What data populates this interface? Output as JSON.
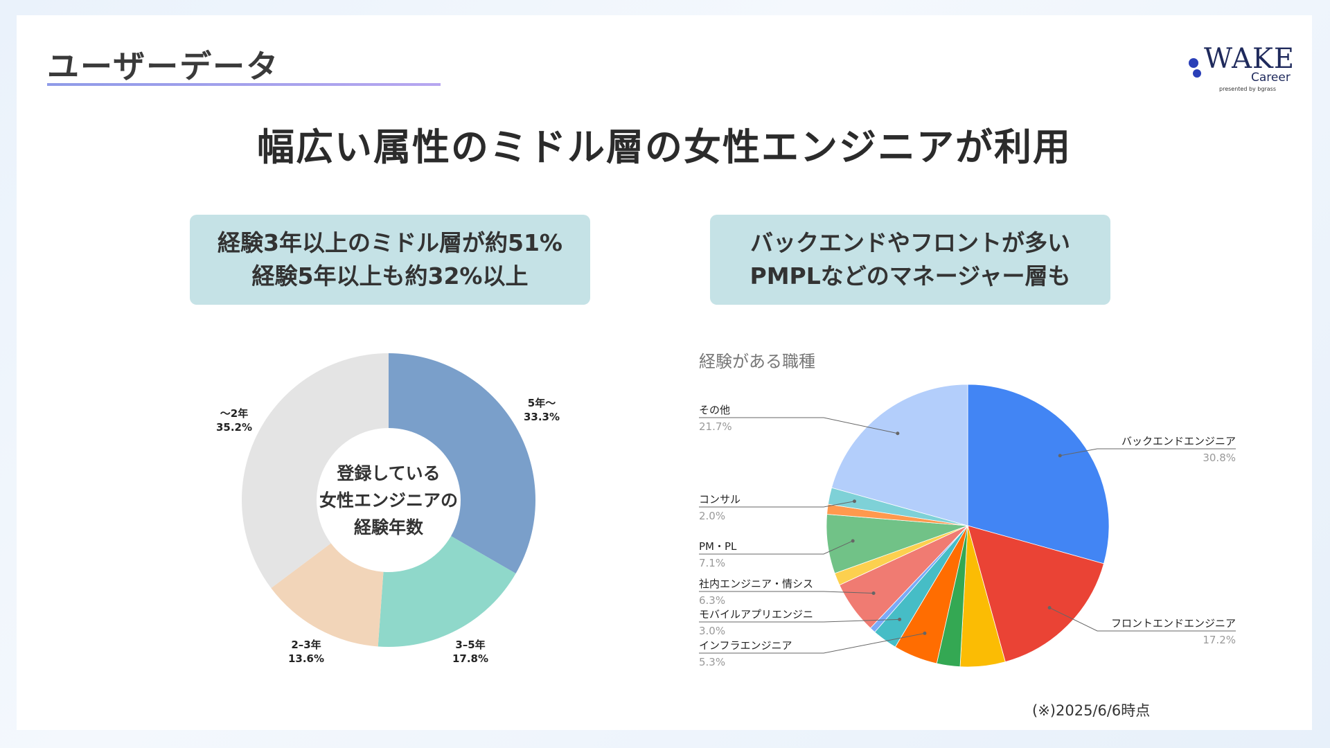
{
  "slide": {
    "section_title": "ユーザーデータ",
    "headline": "幅広い属性のミドル層の女性エンジニアが利用",
    "logo": {
      "wordmark": "WAKE",
      "sub": "Career",
      "presented": "presented by bgrass"
    },
    "callouts": [
      {
        "lines": [
          "経験3年以上のミドル層が約51%",
          "経験5年以上も約32%以上"
        ]
      },
      {
        "lines": [
          "バックエンドやフロントが多い",
          "PMPLなどのマネージャー層も"
        ]
      }
    ],
    "footnote": "(※)2025/6/6時点"
  },
  "chart_data": [
    {
      "type": "pie",
      "donut": true,
      "center_label": [
        "登録している",
        "女性エンジニアの",
        "経験年数"
      ],
      "slices": [
        {
          "label": "5年〜",
          "value": 33.3,
          "display": "33.3%",
          "color": "#7a9fca"
        },
        {
          "label": "3–5年",
          "value": 17.8,
          "display": "17.8%",
          "color": "#8fd8ca"
        },
        {
          "label": "2–3年",
          "value": 13.6,
          "display": "13.6%",
          "color": "#f2d5b9"
        },
        {
          "label": "〜2年",
          "value": 35.2,
          "display": "35.2%",
          "color": "#e4e4e4"
        }
      ]
    },
    {
      "type": "pie",
      "title": "経験がある職種",
      "slices": [
        {
          "label": "バックエンドエンジニア",
          "value": 30.8,
          "display": "30.8%",
          "color": "#4285f4"
        },
        {
          "label": "フロントエンドエンジニア",
          "value": 17.2,
          "display": "17.2%",
          "color": "#ea4335"
        },
        {
          "label": "",
          "value": 5.4,
          "display": "",
          "color": "#fbbc04"
        },
        {
          "label": "",
          "value": 2.8,
          "display": "",
          "color": "#34a853"
        },
        {
          "label": "インフラエンジニア",
          "value": 5.3,
          "display": "5.3%",
          "color": "#ff6d01"
        },
        {
          "label": "モバイルアプリエンジニ",
          "value": 3.0,
          "display": "3.0%",
          "color": "#46bdc6"
        },
        {
          "label": "",
          "value": 0.7,
          "display": "",
          "color": "#7baaf7"
        },
        {
          "label": "社内エンジニア・情シス",
          "value": 6.3,
          "display": "6.3%",
          "color": "#f07b72"
        },
        {
          "label": "",
          "value": 1.5,
          "display": "",
          "color": "#fcd04f"
        },
        {
          "label": "PM・PL",
          "value": 7.1,
          "display": "7.1%",
          "color": "#71c287"
        },
        {
          "label": "",
          "value": 1.2,
          "display": "",
          "color": "#ff994d"
        },
        {
          "label": "コンサル",
          "value": 2.0,
          "display": "2.0%",
          "color": "#7ed1d7"
        },
        {
          "label": "その他",
          "value": 21.7,
          "display": "21.7%",
          "color": "#b3cefb"
        }
      ]
    }
  ]
}
